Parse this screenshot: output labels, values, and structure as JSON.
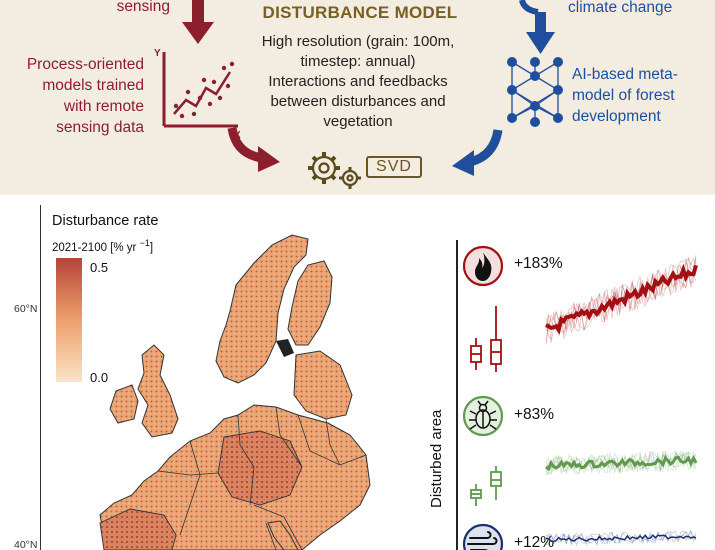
{
  "top": {
    "left_top_fragment": "sensing",
    "left_label_lines": [
      "Process-oriented",
      "models trained",
      "with remote",
      "sensing data"
    ],
    "center_title": "DISTURBANCE MODEL",
    "center_lines": [
      "High resolution (grain: 100m,",
      "timestep: annual)",
      "Interactions and feedbacks",
      "between disturbances and",
      "vegetation"
    ],
    "right_top_fragment": "climate change",
    "right_label_lines": [
      "AI-based meta-",
      "model of forest",
      "development"
    ],
    "svd_logo": "SVD"
  },
  "map": {
    "legend_title": "Disturbance rate",
    "legend_subtitle": "2021-2100 [% yr ",
    "legend_sup": "−1",
    "legend_close": "]",
    "legend_max": "0.5",
    "legend_min": "0.0",
    "lat_60": "60°N",
    "lat_40": "40°N"
  },
  "right_panel": {
    "axis_label": "Disturbed area",
    "fire_pct": "+183%",
    "bark_beetle_pct": "+83%",
    "wind_pct": "+12%"
  },
  "colors": {
    "panel_bg": "#f3ece0",
    "red_accent": "#8b1f2c",
    "blue_accent": "#1f4f9c",
    "gold_accent": "#7a5f1f",
    "fire_series": "#a30f13",
    "beetle_series": "#5f9a4e",
    "wind_series": "#1b2f6b"
  },
  "icons": [
    "arrow-down-icon",
    "scatter-plot-icon",
    "curved-arrow-icon",
    "gear-icon",
    "neural-network-icon",
    "fire-icon",
    "bark-beetle-icon",
    "wind-icon",
    "boxplot-icon"
  ]
}
